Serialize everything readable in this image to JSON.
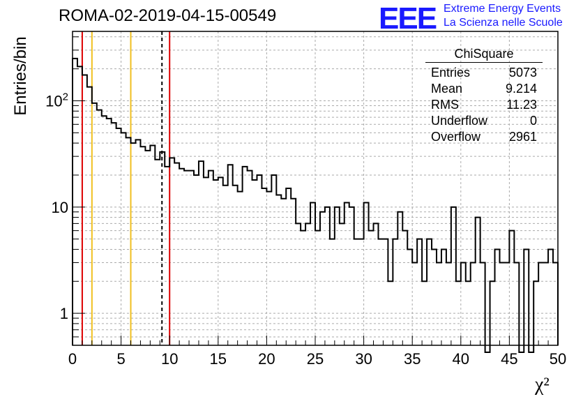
{
  "header": {
    "run_title": "ROMA-02-2019-04-15-00549",
    "logo_text": "EEE",
    "logo_line1": "Extreme Energy Events",
    "logo_line2": "La Scienza nelle Scuole"
  },
  "stats": {
    "title": "ChiSquare",
    "rows": [
      {
        "label": "Entries",
        "value": "5073"
      },
      {
        "label": "Mean",
        "value": "9.214"
      },
      {
        "label": "RMS",
        "value": "11.23"
      },
      {
        "label": "Underflow",
        "value": "0"
      },
      {
        "label": "Overflow",
        "value": "2961"
      }
    ]
  },
  "colors": {
    "accent_logo": "#1a1aff",
    "red_line": "#dd0000",
    "yellow_line": "#f0c020",
    "histogram": "#000000"
  },
  "chart_data": {
    "type": "histogram",
    "title": "ROMA-02-2019-04-15-00549",
    "xlabel": "χ²",
    "ylabel": "Entries/bin",
    "xlim": [
      0,
      50
    ],
    "ylim": [
      0.5,
      450
    ],
    "yscale": "log",
    "grid": true,
    "bin_width": 0.5,
    "x_ticks": [
      "0",
      "5",
      "10",
      "15",
      "20",
      "25",
      "30",
      "35",
      "40",
      "45",
      "50"
    ],
    "y_ticks": [
      {
        "value": 1,
        "label": "1"
      },
      {
        "value": 10,
        "label": "10"
      },
      {
        "value": 100,
        "label": "10²"
      }
    ],
    "values": [
      250,
      210,
      175,
      135,
      95,
      82,
      72,
      68,
      62,
      55,
      50,
      45,
      40,
      43,
      37,
      34,
      38,
      28,
      33,
      24,
      29,
      26,
      23,
      22,
      22,
      20,
      27,
      19,
      22,
      18,
      19,
      16,
      25,
      16,
      14,
      24,
      22,
      18,
      20,
      15,
      14,
      20,
      13,
      12,
      15,
      12,
      7,
      6,
      7,
      11,
      6,
      9,
      10,
      5,
      10,
      7,
      11,
      10,
      5,
      5,
      11,
      6,
      7,
      5,
      5,
      2,
      5,
      9,
      6,
      4,
      3,
      5,
      2,
      5,
      4,
      3,
      4,
      3,
      10,
      2,
      3,
      2,
      3,
      8,
      3,
      0,
      2,
      4,
      3,
      3,
      6,
      3,
      0,
      4,
      0,
      2,
      3,
      3,
      4,
      3
    ],
    "reference_lines": [
      {
        "x": 1,
        "color": "#dd0000",
        "style": "solid"
      },
      {
        "x": 2,
        "color": "#f0c020",
        "style": "solid"
      },
      {
        "x": 6,
        "color": "#f0c020",
        "style": "solid"
      },
      {
        "x": 9.214,
        "color": "#000000",
        "style": "dashed"
      },
      {
        "x": 10,
        "color": "#dd0000",
        "style": "solid"
      }
    ]
  }
}
